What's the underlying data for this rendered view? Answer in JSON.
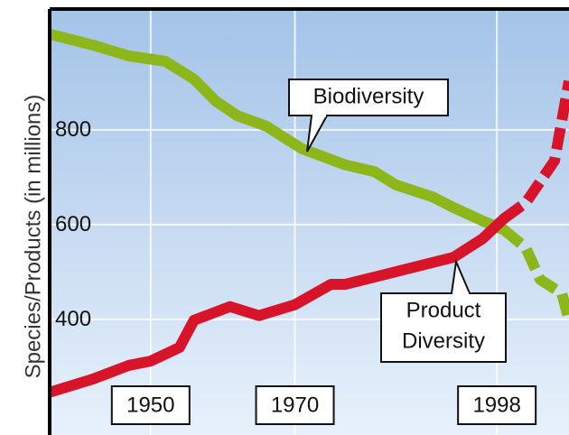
{
  "chart_data": {
    "type": "line",
    "y_label": "Species/Products (in millions)",
    "x": [
      1936,
      1942,
      1947,
      1950,
      1952,
      1954,
      1956,
      1959,
      1961,
      1962,
      1965,
      1966,
      1970,
      1971,
      1975,
      1977,
      1981,
      1982,
      1984,
      1987,
      1989,
      1992,
      1996,
      1999,
      2002,
      2004,
      2006,
      2007,
      2008
    ],
    "xlim": [
      1936,
      2008
    ],
    "xticks": [
      1950,
      1970,
      1998
    ],
    "ylim": [
      156,
      1055
    ],
    "yticks": [
      400,
      600,
      800
    ],
    "grid": true,
    "series": [
      {
        "name": "Biodiversity",
        "color": "#8db61a",
        "values": [
          1002,
          979,
          956,
          null,
          945,
          null,
          907,
          861,
          null,
          830,
          null,
          808,
          null,
          760,
          null,
          726,
          712,
          null,
          684,
          null,
          659,
          636,
          608,
          589,
          null,
          null,
          null,
          null,
          null
        ],
        "projected_values": [
          null,
          null,
          null,
          null,
          null,
          null,
          null,
          null,
          null,
          null,
          null,
          null,
          null,
          null,
          null,
          null,
          null,
          null,
          null,
          null,
          null,
          null,
          null,
          589,
          551,
          484,
          null,
          455,
          398
        ]
      },
      {
        "name": "Product Diversity",
        "color": "#d7142a",
        "values": [
          246,
          274,
          303,
          312,
          null,
          341,
          398,
          null,
          427,
          null,
          408,
          null,
          431,
          null,
          474,
          474,
          null,
          493,
          null,
          512,
          null,
          531,
          570,
          613,
          null,
          null,
          null,
          null,
          null
        ],
        "projected_values": [
          null,
          null,
          null,
          null,
          null,
          null,
          null,
          null,
          null,
          null,
          null,
          null,
          null,
          null,
          null,
          null,
          null,
          null,
          null,
          null,
          null,
          null,
          null,
          613,
          646,
          null,
          735,
          null,
          903
        ]
      }
    ],
    "annotations": [
      {
        "lines": [
          "Biodiversity"
        ]
      },
      {
        "lines": [
          "Product",
          "Diversity"
        ]
      }
    ]
  }
}
